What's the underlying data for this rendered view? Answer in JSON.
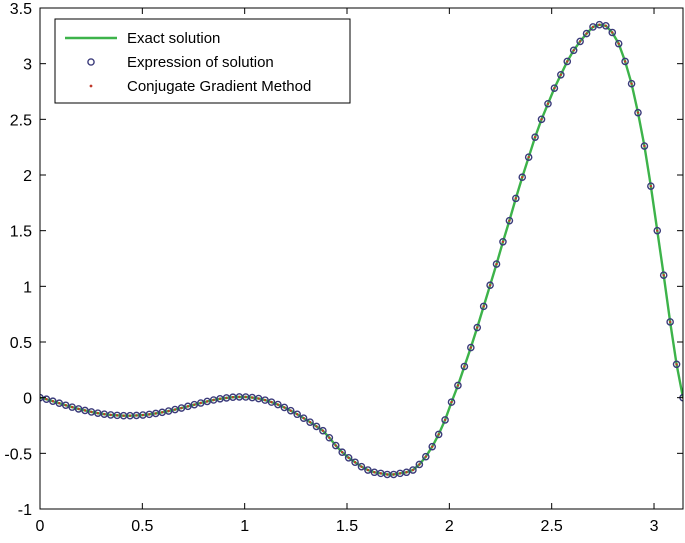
{
  "chart_data": {
    "type": "line",
    "title": "",
    "xlabel": "",
    "ylabel": "",
    "xlim": [
      0,
      3.1416
    ],
    "ylim": [
      -1,
      3.5
    ],
    "xticks": [
      "0",
      "0.5",
      "1",
      "1.5",
      "2",
      "2.5",
      "3"
    ],
    "yticks": [
      "-1",
      "-0.5",
      "0",
      "0.5",
      "1",
      "1.5",
      "2",
      "2.5",
      "3",
      "3.5"
    ],
    "grid": false,
    "legend_position": "top-left",
    "series": [
      {
        "name": "Exact solution",
        "style": "solid line",
        "color": "#3db34a",
        "x": [
          0,
          0.0314,
          0.0628,
          0.0942,
          0.1257,
          0.1571,
          0.1885,
          0.2199,
          0.2513,
          0.2827,
          0.3142,
          0.3456,
          0.377,
          0.4084,
          0.4398,
          0.4712,
          0.5027,
          0.5341,
          0.5655,
          0.5969,
          0.6283,
          0.6597,
          0.6912,
          0.7226,
          0.754,
          0.7854,
          0.8168,
          0.8482,
          0.8796,
          0.9111,
          0.9425,
          0.9739,
          1.0053,
          1.0367,
          1.0681,
          1.0996,
          1.131,
          1.1624,
          1.1938,
          1.2252,
          1.2566,
          1.2881,
          1.3195,
          1.3509,
          1.3823,
          1.4137,
          1.4451,
          1.4765,
          1.508,
          1.5394,
          1.5708,
          1.6022,
          1.6336,
          1.665,
          1.6965,
          1.7279,
          1.7593,
          1.7907,
          1.8221,
          1.8535,
          1.885,
          1.9164,
          1.9478,
          1.9792,
          2.0106,
          2.042,
          2.0735,
          2.1049,
          2.1363,
          2.1677,
          2.1991,
          2.2305,
          2.2619,
          2.2934,
          2.3248,
          2.3562,
          2.3876,
          2.419,
          2.4504,
          2.4819,
          2.5133,
          2.5447,
          2.5761,
          2.6075,
          2.6389,
          2.6704,
          2.7018,
          2.7332,
          2.7646,
          2.796,
          2.8274,
          2.8588,
          2.8903,
          2.9217,
          2.9531,
          2.9845,
          3.0159,
          3.0473,
          3.0788,
          3.1102,
          3.1416
        ],
        "y": [
          0,
          -0.014,
          -0.032,
          -0.05,
          -0.068,
          -0.085,
          -0.101,
          -0.115,
          -0.128,
          -0.139,
          -0.148,
          -0.155,
          -0.159,
          -0.162,
          -0.162,
          -0.16,
          -0.156,
          -0.15,
          -0.142,
          -0.132,
          -0.12,
          -0.107,
          -0.093,
          -0.078,
          -0.063,
          -0.048,
          -0.034,
          -0.021,
          -0.01,
          -0.002,
          0.004,
          0.007,
          0.006,
          0.001,
          -0.008,
          -0.022,
          -0.04,
          -0.062,
          -0.088,
          -0.117,
          -0.149,
          -0.184,
          -0.22,
          -0.258,
          -0.297,
          -0.36,
          -0.43,
          -0.49,
          -0.54,
          -0.58,
          -0.62,
          -0.65,
          -0.67,
          -0.68,
          -0.69,
          -0.69,
          -0.68,
          -0.67,
          -0.65,
          -0.6,
          -0.53,
          -0.44,
          -0.33,
          -0.2,
          -0.04,
          0.11,
          0.28,
          0.45,
          0.63,
          0.82,
          1.01,
          1.2,
          1.4,
          1.59,
          1.79,
          1.98,
          2.16,
          2.34,
          2.5,
          2.64,
          2.78,
          2.9,
          3.02,
          3.12,
          3.2,
          3.27,
          3.33,
          3.35,
          3.34,
          3.28,
          3.18,
          3.02,
          2.82,
          2.56,
          2.26,
          1.9,
          1.5,
          1.1,
          0.68,
          0.3,
          0
        ]
      },
      {
        "name": "Expression of solution",
        "style": "open circle markers",
        "color": "#3a3a7a",
        "x": [
          0,
          0.0314,
          0.0628,
          0.0942,
          0.1257,
          0.1571,
          0.1885,
          0.2199,
          0.2513,
          0.2827,
          0.3142,
          0.3456,
          0.377,
          0.4084,
          0.4398,
          0.4712,
          0.5027,
          0.5341,
          0.5655,
          0.5969,
          0.6283,
          0.6597,
          0.6912,
          0.7226,
          0.754,
          0.7854,
          0.8168,
          0.8482,
          0.8796,
          0.9111,
          0.9425,
          0.9739,
          1.0053,
          1.0367,
          1.0681,
          1.0996,
          1.131,
          1.1624,
          1.1938,
          1.2252,
          1.2566,
          1.2881,
          1.3195,
          1.3509,
          1.3823,
          1.4137,
          1.4451,
          1.4765,
          1.508,
          1.5394,
          1.5708,
          1.6022,
          1.6336,
          1.665,
          1.6965,
          1.7279,
          1.7593,
          1.7907,
          1.8221,
          1.8535,
          1.885,
          1.9164,
          1.9478,
          1.9792,
          2.0106,
          2.042,
          2.0735,
          2.1049,
          2.1363,
          2.1677,
          2.1991,
          2.2305,
          2.2619,
          2.2934,
          2.3248,
          2.3562,
          2.3876,
          2.419,
          2.4504,
          2.4819,
          2.5133,
          2.5447,
          2.5761,
          2.6075,
          2.6389,
          2.6704,
          2.7018,
          2.7332,
          2.7646,
          2.796,
          2.8274,
          2.8588,
          2.8903,
          2.9217,
          2.9531,
          2.9845,
          3.0159,
          3.0473,
          3.0788,
          3.1102,
          3.1416
        ],
        "y": [
          0,
          -0.014,
          -0.032,
          -0.05,
          -0.068,
          -0.085,
          -0.101,
          -0.115,
          -0.128,
          -0.139,
          -0.148,
          -0.155,
          -0.159,
          -0.162,
          -0.162,
          -0.16,
          -0.156,
          -0.15,
          -0.142,
          -0.132,
          -0.12,
          -0.107,
          -0.093,
          -0.078,
          -0.063,
          -0.048,
          -0.034,
          -0.021,
          -0.01,
          -0.002,
          0.004,
          0.007,
          0.006,
          0.001,
          -0.008,
          -0.022,
          -0.04,
          -0.062,
          -0.088,
          -0.117,
          -0.149,
          -0.184,
          -0.22,
          -0.258,
          -0.297,
          -0.36,
          -0.43,
          -0.49,
          -0.54,
          -0.58,
          -0.62,
          -0.65,
          -0.67,
          -0.68,
          -0.69,
          -0.69,
          -0.68,
          -0.67,
          -0.65,
          -0.6,
          -0.53,
          -0.44,
          -0.33,
          -0.2,
          -0.04,
          0.11,
          0.28,
          0.45,
          0.63,
          0.82,
          1.01,
          1.2,
          1.4,
          1.59,
          1.79,
          1.98,
          2.16,
          2.34,
          2.5,
          2.64,
          2.78,
          2.9,
          3.02,
          3.12,
          3.2,
          3.27,
          3.33,
          3.35,
          3.34,
          3.28,
          3.18,
          3.02,
          2.82,
          2.56,
          2.26,
          1.9,
          1.5,
          1.1,
          0.68,
          0.3,
          0
        ]
      },
      {
        "name": "Conjugate Gradient Method",
        "style": "dot markers",
        "color": "#c0392b",
        "x": [
          0,
          0.0314,
          0.0628,
          0.0942,
          0.1257,
          0.1571,
          0.1885,
          0.2199,
          0.2513,
          0.2827,
          0.3142,
          0.3456,
          0.377,
          0.4084,
          0.4398,
          0.4712,
          0.5027,
          0.5341,
          0.5655,
          0.5969,
          0.6283,
          0.6597,
          0.6912,
          0.7226,
          0.754,
          0.7854,
          0.8168,
          0.8482,
          0.8796,
          0.9111,
          0.9425,
          0.9739,
          1.0053,
          1.0367,
          1.0681,
          1.0996,
          1.131,
          1.1624,
          1.1938,
          1.2252,
          1.2566,
          1.2881,
          1.3195,
          1.3509,
          1.3823,
          1.4137,
          1.4451,
          1.4765,
          1.508,
          1.5394,
          1.5708,
          1.6022,
          1.6336,
          1.665,
          1.6965,
          1.7279,
          1.7593,
          1.7907,
          1.8221,
          1.8535,
          1.885,
          1.9164,
          1.9478,
          1.9792,
          2.0106,
          2.042,
          2.0735,
          2.1049,
          2.1363,
          2.1677,
          2.1991,
          2.2305,
          2.2619,
          2.2934,
          2.3248,
          2.3562,
          2.3876,
          2.419,
          2.4504,
          2.4819,
          2.5133,
          2.5447,
          2.5761,
          2.6075,
          2.6389,
          2.6704,
          2.7018,
          2.7332,
          2.7646,
          2.796,
          2.8274,
          2.8588,
          2.8903,
          2.9217,
          2.9531,
          2.9845,
          3.0159,
          3.0473,
          3.0788,
          3.1102,
          3.1416
        ],
        "y": [
          0,
          -0.014,
          -0.032,
          -0.05,
          -0.068,
          -0.085,
          -0.101,
          -0.115,
          -0.128,
          -0.139,
          -0.148,
          -0.155,
          -0.159,
          -0.162,
          -0.162,
          -0.16,
          -0.156,
          -0.15,
          -0.142,
          -0.132,
          -0.12,
          -0.107,
          -0.093,
          -0.078,
          -0.063,
          -0.048,
          -0.034,
          -0.021,
          -0.01,
          -0.002,
          0.004,
          0.007,
          0.006,
          0.001,
          -0.008,
          -0.022,
          -0.04,
          -0.062,
          -0.088,
          -0.117,
          -0.149,
          -0.184,
          -0.22,
          -0.258,
          -0.297,
          -0.36,
          -0.43,
          -0.49,
          -0.54,
          -0.58,
          -0.62,
          -0.65,
          -0.67,
          -0.68,
          -0.69,
          -0.69,
          -0.68,
          -0.67,
          -0.65,
          -0.6,
          -0.53,
          -0.44,
          -0.33,
          -0.2,
          -0.04,
          0.11,
          0.28,
          0.45,
          0.63,
          0.82,
          1.01,
          1.2,
          1.4,
          1.59,
          1.79,
          1.98,
          2.16,
          2.34,
          2.5,
          2.64,
          2.78,
          2.9,
          3.02,
          3.12,
          3.2,
          3.27,
          3.33,
          3.35,
          3.34,
          3.28,
          3.18,
          3.02,
          2.82,
          2.56,
          2.26,
          1.9,
          1.5,
          1.1,
          0.68,
          0.3,
          0
        ]
      }
    ]
  }
}
